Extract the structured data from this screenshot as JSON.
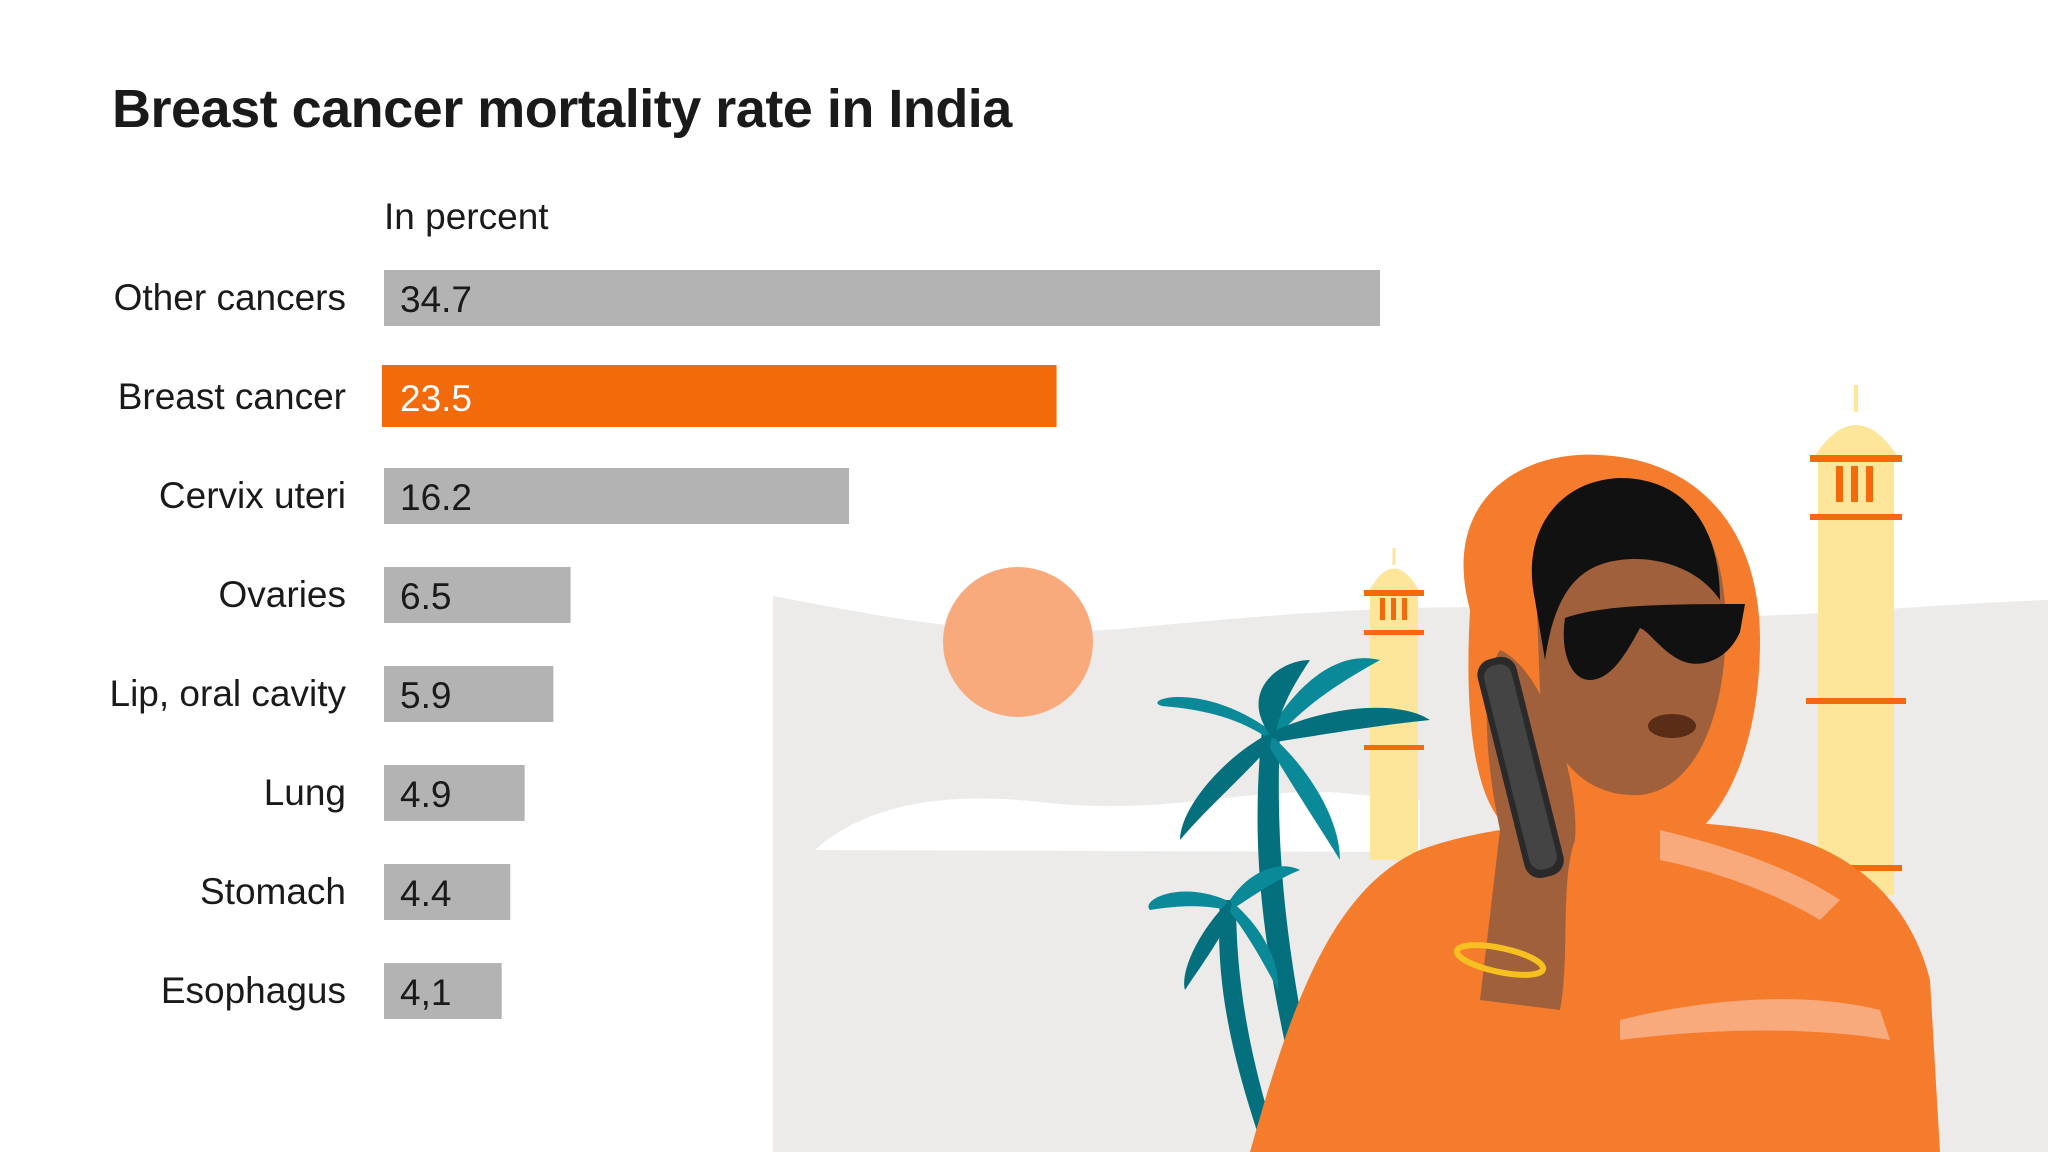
{
  "chart_data": {
    "type": "bar",
    "orientation": "horizontal",
    "title": "Breast cancer mortality rate in India",
    "unit_label": "In percent",
    "categories": [
      "Other cancers",
      "Breast cancer",
      "Cervix uteri",
      "Ovaries",
      "Lip, oral cavity",
      "Lung",
      "Stomach",
      "Esophagus"
    ],
    "values": [
      34.7,
      23.5,
      16.2,
      6.5,
      5.9,
      4.9,
      4.4,
      4.1
    ],
    "value_labels": [
      "34.7",
      "23.5",
      "16.2",
      "6.5",
      "5.9",
      "4.9",
      "4.4",
      "4,1"
    ],
    "highlight": "Breast cancer",
    "xlim": [
      0,
      34.7
    ],
    "xlabel": "",
    "ylabel": "",
    "grid": false,
    "legend": "none"
  },
  "colors": {
    "bar": "#b3b3b3",
    "highlight": "#f26a0a",
    "text": "#1a1a1a",
    "highlight_text": "#ffffff"
  },
  "illustration": {
    "name": "woman-on-phone-with-palms-and-minarets",
    "icons": [
      "sun-icon",
      "palm-tree-icon",
      "minaret-icon",
      "woman-on-phone-icon"
    ]
  }
}
